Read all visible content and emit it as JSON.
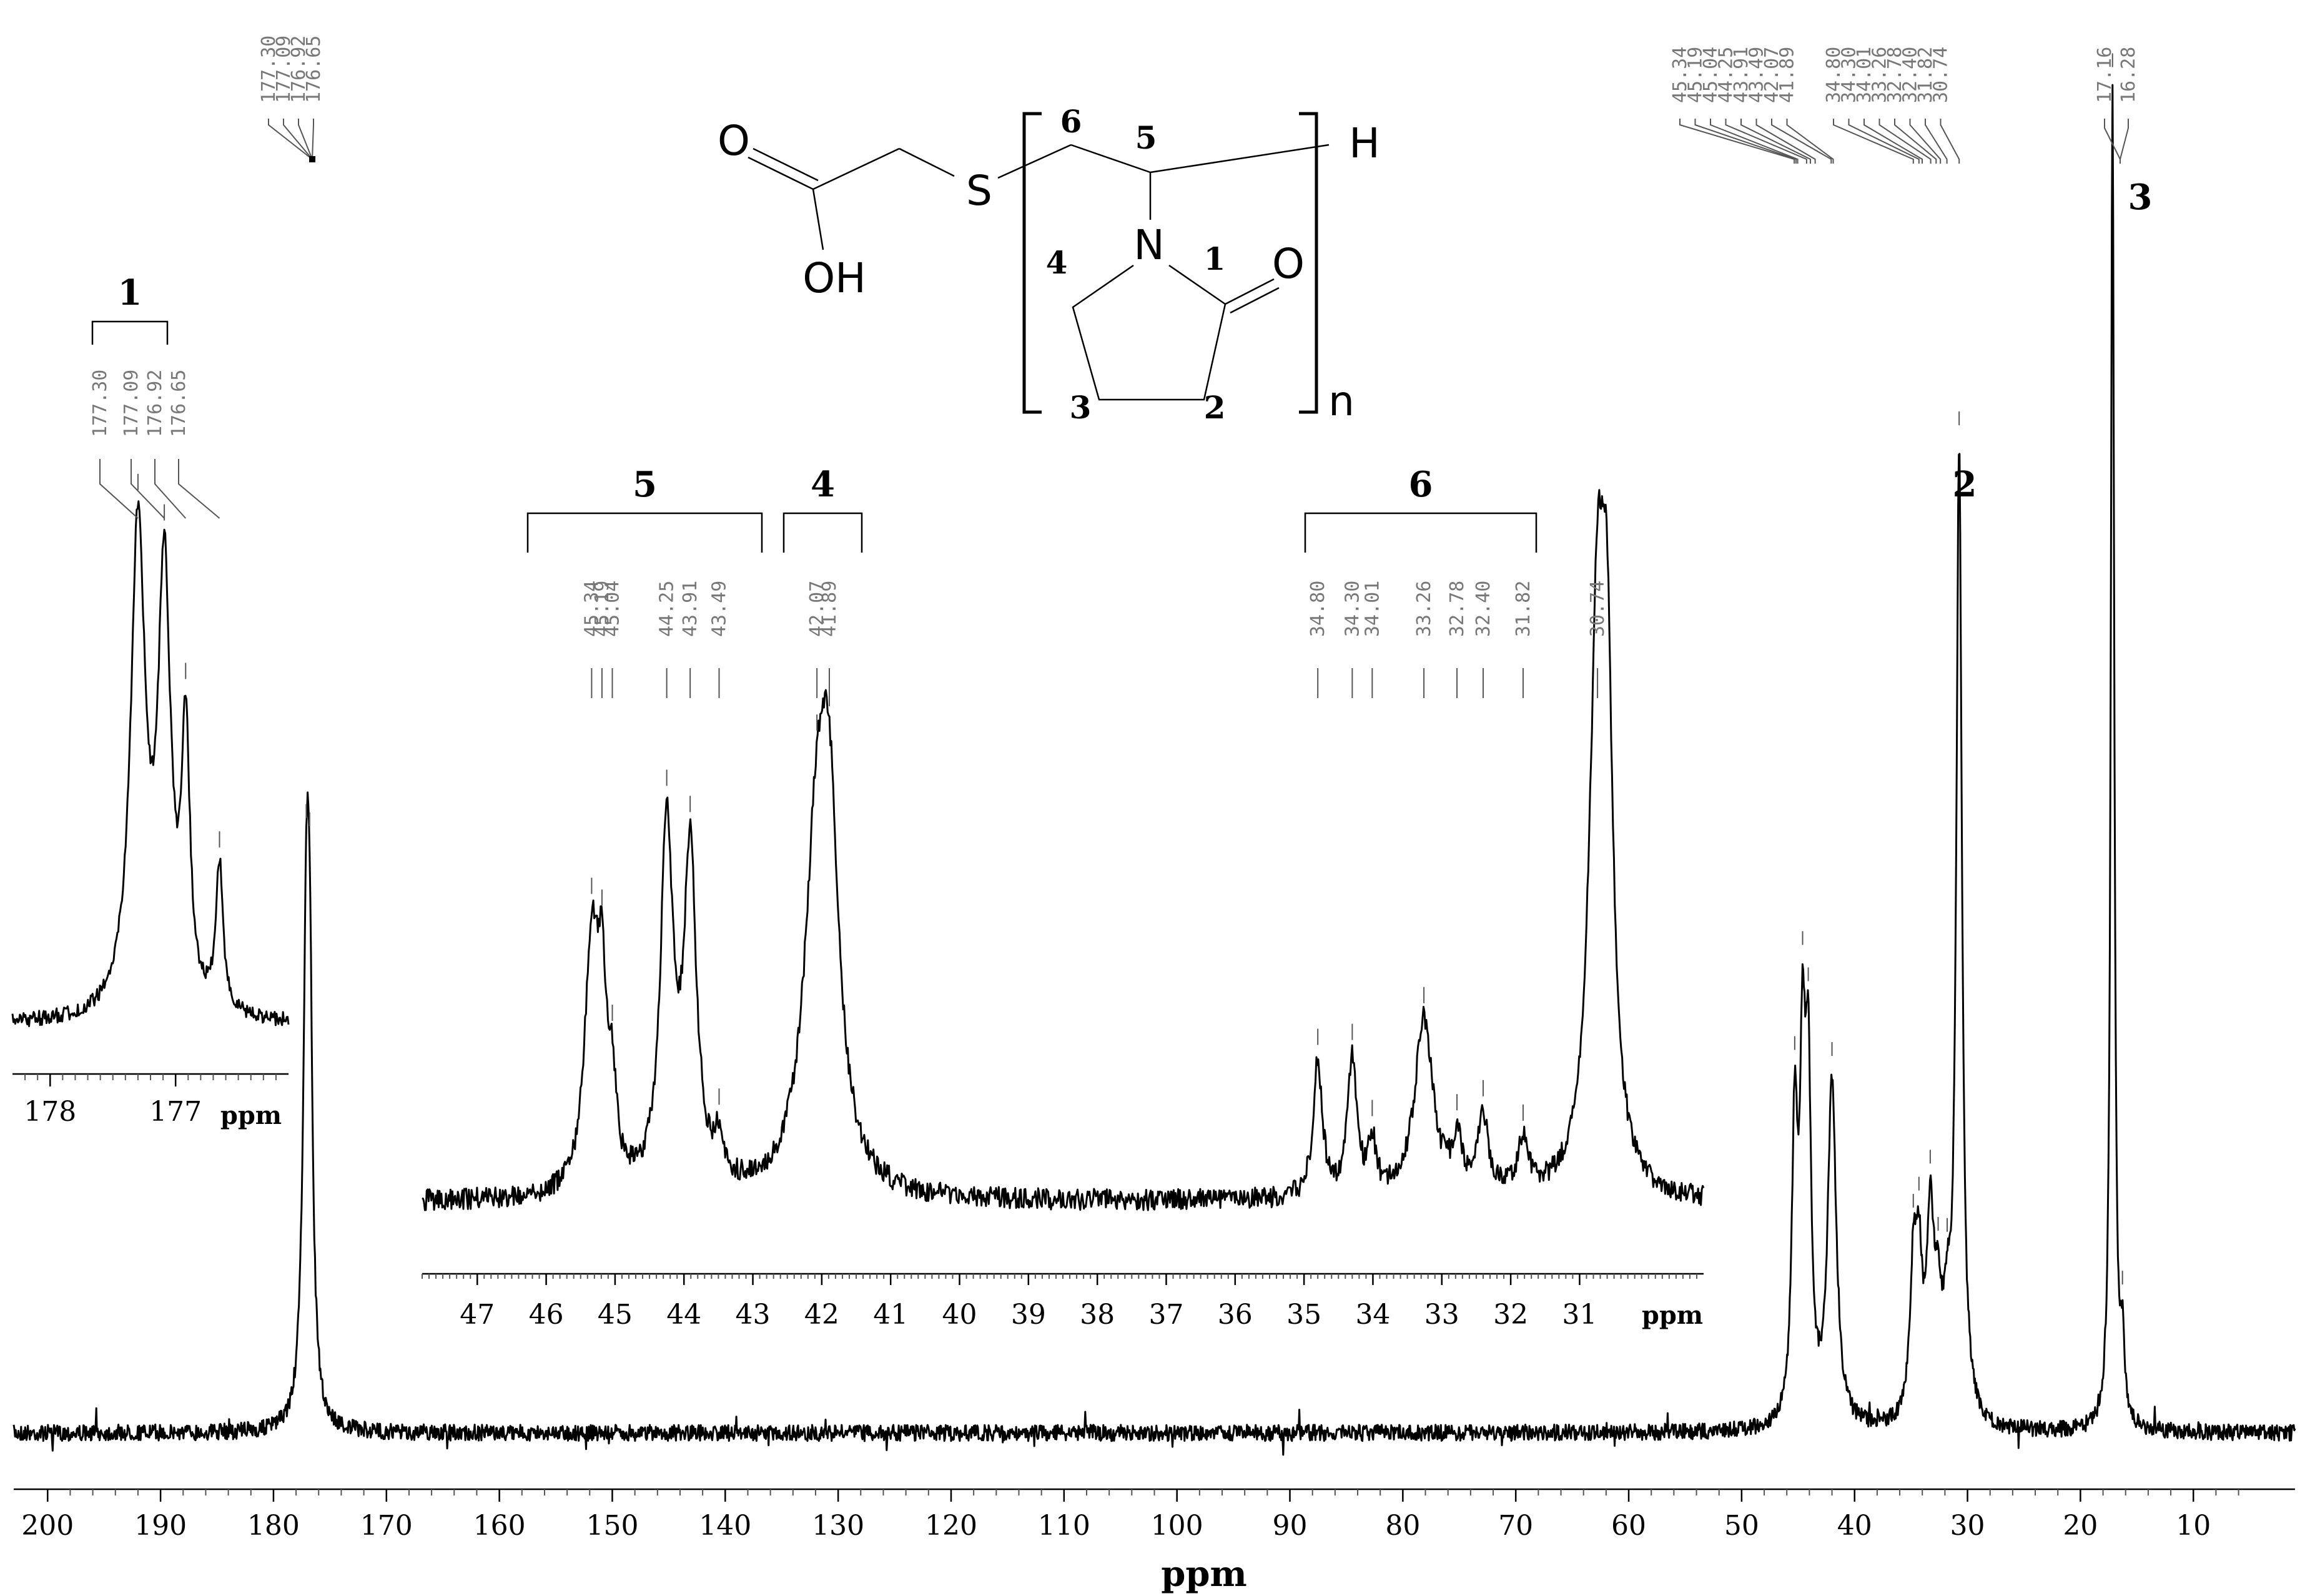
{
  "chart_data": {
    "type": "line",
    "xlabel": "ppm",
    "x_reversed": true,
    "grid": false,
    "legend": "none",
    "main": {
      "xlim": [
        203,
        1
      ],
      "ticks": [
        200,
        190,
        180,
        170,
        160,
        150,
        140,
        130,
        120,
        110,
        100,
        90,
        80,
        70,
        60,
        50,
        40,
        30,
        20,
        10
      ],
      "peaks": [
        {
          "ppm": 177.1,
          "height": 0.68,
          "width": 0.35
        },
        {
          "ppm": 176.8,
          "height": 0.55,
          "width": 0.3
        },
        {
          "ppm": 45.3,
          "height": 0.46,
          "width": 0.3
        },
        {
          "ppm": 44.6,
          "height": 0.53,
          "width": 0.3
        },
        {
          "ppm": 44.1,
          "height": 0.5,
          "width": 0.3
        },
        {
          "ppm": 42.0,
          "height": 0.55,
          "width": 0.45
        },
        {
          "ppm": 34.8,
          "height": 0.22,
          "width": 0.35
        },
        {
          "ppm": 34.3,
          "height": 0.22,
          "width": 0.35
        },
        {
          "ppm": 33.3,
          "height": 0.3,
          "width": 0.4
        },
        {
          "ppm": 32.6,
          "height": 0.14,
          "width": 0.4
        },
        {
          "ppm": 31.8,
          "height": 0.12,
          "width": 0.4
        },
        {
          "ppm": 30.74,
          "height": 1.55,
          "width": 0.3
        },
        {
          "ppm": 17.16,
          "height": 2.15,
          "width": 0.18
        },
        {
          "ppm": 16.28,
          "height": 0.12,
          "width": 0.2
        }
      ]
    },
    "inset_carbonyl": {
      "xlim": [
        178.3,
        176.1
      ],
      "ticks": [
        178,
        177
      ],
      "unit_label": "ppm",
      "assignment": "1",
      "peak_labels": [
        "177.30",
        "177.09",
        "176.92",
        "176.65"
      ],
      "peaks": [
        {
          "ppm": 177.3,
          "height": 1.0,
          "width": 0.07
        },
        {
          "ppm": 177.09,
          "height": 0.88,
          "width": 0.06
        },
        {
          "ppm": 176.92,
          "height": 0.55,
          "width": 0.04
        },
        {
          "ppm": 176.65,
          "height": 0.3,
          "width": 0.035
        }
      ]
    },
    "inset_aliphatic": {
      "xlim": [
        47.8,
        29.2
      ],
      "ticks": [
        47,
        46,
        45,
        44,
        43,
        42,
        41,
        40,
        39,
        38,
        37,
        36,
        35,
        34,
        33,
        32,
        31
      ],
      "unit_label": "ppm",
      "peaks": [
        {
          "ppm": 45.34,
          "height": 0.58,
          "width": 0.12
        },
        {
          "ppm": 45.19,
          "height": 0.38,
          "width": 0.08
        },
        {
          "ppm": 45.04,
          "height": 0.2,
          "width": 0.07
        },
        {
          "ppm": 44.25,
          "height": 0.85,
          "width": 0.11
        },
        {
          "ppm": 43.91,
          "height": 0.78,
          "width": 0.11
        },
        {
          "ppm": 43.49,
          "height": 0.1,
          "width": 0.08
        },
        {
          "ppm": 42.07,
          "height": 0.75,
          "width": 0.22
        },
        {
          "ppm": 41.89,
          "height": 0.68,
          "width": 0.17
        },
        {
          "ppm": 34.8,
          "height": 0.32,
          "width": 0.08
        },
        {
          "ppm": 34.3,
          "height": 0.32,
          "width": 0.08
        },
        {
          "ppm": 34.01,
          "height": 0.12,
          "width": 0.07
        },
        {
          "ppm": 33.26,
          "height": 0.42,
          "width": 0.16
        },
        {
          "ppm": 32.78,
          "height": 0.12,
          "width": 0.08
        },
        {
          "ppm": 32.4,
          "height": 0.18,
          "width": 0.09
        },
        {
          "ppm": 31.82,
          "height": 0.12,
          "width": 0.1
        },
        {
          "ppm": 30.74,
          "height": 1.3,
          "width": 0.14
        },
        {
          "ppm": 30.6,
          "height": 0.9,
          "width": 0.1
        }
      ],
      "groups": [
        {
          "label": "5",
          "from": 46.2,
          "to": 42.8,
          "peak_labels": [
            "45.34",
            "45.19",
            "45.04",
            "44.25",
            "43.91",
            "43.49"
          ]
        },
        {
          "label": "4",
          "from": 42.6,
          "to": 41.4,
          "peak_labels": [
            "42.07",
            "41.89"
          ]
        },
        {
          "label": "6",
          "from": 35.0,
          "to": 31.7,
          "peak_labels": [
            "34.80",
            "34.30",
            "34.01",
            "33.26",
            "32.78",
            "32.40",
            "31.82"
          ]
        }
      ],
      "extra_label": "30.74"
    },
    "annotations": {
      "top_left_labels": [
        "177.30",
        "177.09",
        "176.92",
        "176.65"
      ],
      "top_right_labels": [
        "45.34",
        "45.19",
        "45.04",
        "44.25",
        "43.91",
        "43.49",
        "42.07",
        "41.89",
        "34.80",
        "34.30",
        "34.01",
        "33.26",
        "32.78",
        "32.40",
        "31.82",
        "30.74"
      ],
      "top_right_pair": [
        "17.16",
        "16.28"
      ],
      "peak_assignments": [
        {
          "label": "2",
          "ppm": 30.74
        },
        {
          "label": "3",
          "ppm": 17.16
        }
      ]
    },
    "structure": {
      "atoms": {
        "O_top": "O",
        "OH": "OH",
        "S": "S",
        "H": "H",
        "N": "N",
        "O_ring": "O",
        "n": "n"
      },
      "numbers": [
        "6",
        "5",
        "4",
        "1",
        "3",
        "2"
      ]
    }
  }
}
